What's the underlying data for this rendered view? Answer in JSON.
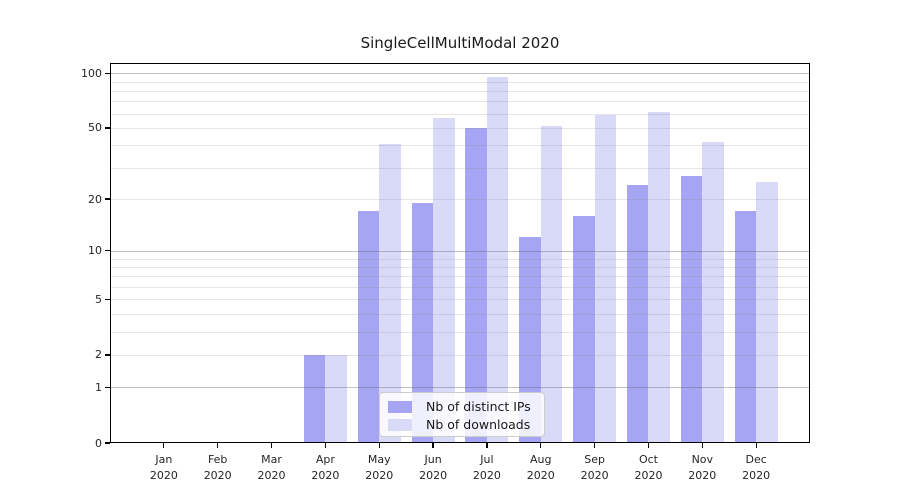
{
  "title": "SingleCellMultiModal 2020",
  "chart_data": {
    "type": "bar",
    "title": "SingleCellMultiModal 2020",
    "categories": [
      "Jan 2020",
      "Feb 2020",
      "Mar 2020",
      "Apr 2020",
      "May 2020",
      "Jun 2020",
      "Jul 2020",
      "Aug 2020",
      "Sep 2020",
      "Oct 2020",
      "Nov 2020",
      "Dec 2020"
    ],
    "month_names": [
      "Jan",
      "Feb",
      "Mar",
      "Apr",
      "May",
      "Jun",
      "Jul",
      "Aug",
      "Sep",
      "Oct",
      "Nov",
      "Dec"
    ],
    "year": "2020",
    "series": [
      {
        "name": "Nb of distinct IPs",
        "color": "#a5a5f3",
        "values": [
          0,
          0,
          0,
          2,
          17,
          19,
          50,
          12,
          16,
          24,
          27,
          17
        ]
      },
      {
        "name": "Nb of downloads",
        "color": "#d9d9f8",
        "values": [
          0,
          0,
          0,
          2,
          41,
          57,
          95,
          51,
          59,
          61,
          42,
          25
        ]
      }
    ],
    "yscale": "log1p",
    "yticks": [
      0,
      1,
      2,
      5,
      10,
      20,
      50,
      100
    ],
    "ylim": [
      0,
      114
    ],
    "grid": "horizontal-log-minor",
    "legend_position": "lower-center"
  },
  "colors": {
    "bar_distinct_ips": "#a5a5f3",
    "bar_downloads": "#d9d9f8",
    "text": "#262626",
    "spine": "#000000",
    "grid_major": "#c6c6c6",
    "grid_minor": "#e8e8e8"
  }
}
